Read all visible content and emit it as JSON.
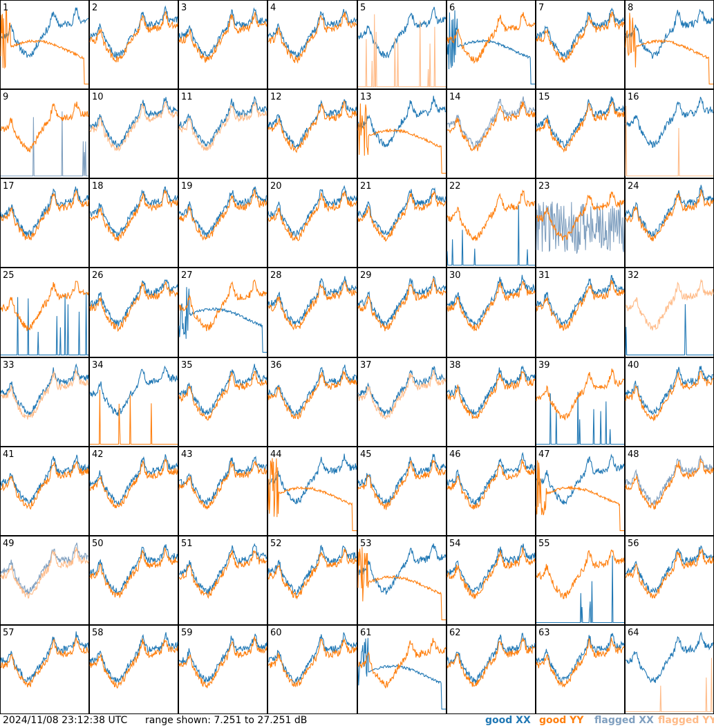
{
  "footer": {
    "timestamp": "2024/11/08 23:12:38 UTC",
    "range_text": "range shown: 7.251 to 27.251 dB",
    "legend": [
      "good XX",
      "good YY",
      "flagged XX",
      "flagged YY"
    ]
  },
  "colors": {
    "good_xx": "#1f77b4",
    "good_yy": "#ff7f0e",
    "flagged_xx": "#7f9fbf",
    "flagged_yy": "#ffbb88"
  },
  "chart_data": {
    "type": "line",
    "layout": "8x8 small multiples",
    "ylim": [
      7.251,
      27.251
    ],
    "y_unit": "dB",
    "panels": [
      {
        "id": "1",
        "xx": "good",
        "yy": "good",
        "yy_shape": "drop"
      },
      {
        "id": "2",
        "xx": "good",
        "yy": "good"
      },
      {
        "id": "3",
        "xx": "good",
        "yy": "good"
      },
      {
        "id": "4",
        "xx": "good",
        "yy": "good"
      },
      {
        "id": "5",
        "xx": "good",
        "yy": "flagged",
        "yy_shape": "spikes"
      },
      {
        "id": "6",
        "xx": "good",
        "yy": "good",
        "xx_shape": "drop"
      },
      {
        "id": "7",
        "xx": "good",
        "yy": "good"
      },
      {
        "id": "8",
        "xx": "good",
        "yy": "good",
        "yy_shape": "drop"
      },
      {
        "id": "9",
        "xx": "flagged",
        "yy": "good",
        "xx_shape": "spikes"
      },
      {
        "id": "10",
        "xx": "good",
        "yy": "flagged"
      },
      {
        "id": "11",
        "xx": "good",
        "yy": "flagged"
      },
      {
        "id": "12",
        "xx": "good",
        "yy": "good"
      },
      {
        "id": "13",
        "xx": "good",
        "yy": "good",
        "yy_shape": "drop"
      },
      {
        "id": "14",
        "xx": "flagged",
        "yy": "good"
      },
      {
        "id": "15",
        "xx": "good",
        "yy": "good"
      },
      {
        "id": "16",
        "xx": "good",
        "yy": "flagged",
        "yy_shape": "spikes"
      },
      {
        "id": "17",
        "xx": "good",
        "yy": "good"
      },
      {
        "id": "18",
        "xx": "good",
        "yy": "good"
      },
      {
        "id": "19",
        "xx": "good",
        "yy": "good"
      },
      {
        "id": "20",
        "xx": "good",
        "yy": "good"
      },
      {
        "id": "21",
        "xx": "good",
        "yy": "good"
      },
      {
        "id": "22",
        "xx": "good",
        "yy": "good",
        "xx_shape": "spikes"
      },
      {
        "id": "23",
        "xx": "flagged",
        "yy": "good",
        "xx_shape": "noisy"
      },
      {
        "id": "24",
        "xx": "good",
        "yy": "good"
      },
      {
        "id": "25",
        "xx": "good",
        "yy": "good",
        "xx_shape": "spikes"
      },
      {
        "id": "26",
        "xx": "good",
        "yy": "good"
      },
      {
        "id": "27",
        "xx": "good",
        "yy": "good",
        "xx_shape": "drop"
      },
      {
        "id": "28",
        "xx": "good",
        "yy": "good"
      },
      {
        "id": "29",
        "xx": "good",
        "yy": "good"
      },
      {
        "id": "30",
        "xx": "good",
        "yy": "good"
      },
      {
        "id": "31",
        "xx": "good",
        "yy": "good"
      },
      {
        "id": "32",
        "xx": "good",
        "yy": "flagged",
        "xx_shape": "spikes"
      },
      {
        "id": "33",
        "xx": "good",
        "yy": "flagged"
      },
      {
        "id": "34",
        "xx": "good",
        "yy": "good",
        "yy_shape": "spikes"
      },
      {
        "id": "35",
        "xx": "good",
        "yy": "good"
      },
      {
        "id": "36",
        "xx": "good",
        "yy": "good"
      },
      {
        "id": "37",
        "xx": "good",
        "yy": "flagged"
      },
      {
        "id": "38",
        "xx": "good",
        "yy": "good"
      },
      {
        "id": "39",
        "xx": "good",
        "yy": "good",
        "xx_shape": "spikes"
      },
      {
        "id": "40",
        "xx": "good",
        "yy": "good"
      },
      {
        "id": "41",
        "xx": "good",
        "yy": "good"
      },
      {
        "id": "42",
        "xx": "good",
        "yy": "good"
      },
      {
        "id": "43",
        "xx": "good",
        "yy": "good"
      },
      {
        "id": "44",
        "xx": "good",
        "yy": "good",
        "yy_shape": "drop"
      },
      {
        "id": "45",
        "xx": "good",
        "yy": "good"
      },
      {
        "id": "46",
        "xx": "good",
        "yy": "good"
      },
      {
        "id": "47",
        "xx": "good",
        "yy": "good",
        "yy_shape": "drop"
      },
      {
        "id": "48",
        "xx": "flagged",
        "yy": "good"
      },
      {
        "id": "49",
        "xx": "flagged",
        "yy": "flagged"
      },
      {
        "id": "50",
        "xx": "good",
        "yy": "good"
      },
      {
        "id": "51",
        "xx": "good",
        "yy": "good"
      },
      {
        "id": "52",
        "xx": "good",
        "yy": "good"
      },
      {
        "id": "53",
        "xx": "good",
        "yy": "good",
        "yy_shape": "drop"
      },
      {
        "id": "54",
        "xx": "good",
        "yy": "good"
      },
      {
        "id": "55",
        "xx": "good",
        "yy": "good",
        "xx_shape": "spikes"
      },
      {
        "id": "56",
        "xx": "good",
        "yy": "good"
      },
      {
        "id": "57",
        "xx": "good",
        "yy": "good"
      },
      {
        "id": "58",
        "xx": "good",
        "yy": "good"
      },
      {
        "id": "59",
        "xx": "good",
        "yy": "good"
      },
      {
        "id": "60",
        "xx": "good",
        "yy": "good"
      },
      {
        "id": "61",
        "xx": "good",
        "yy": "good",
        "xx_shape": "drop"
      },
      {
        "id": "62",
        "xx": "good",
        "yy": "good"
      },
      {
        "id": "63",
        "xx": "good",
        "yy": "good"
      },
      {
        "id": "64",
        "xx": "good",
        "yy": "flagged",
        "yy_shape": "spikes"
      }
    ]
  }
}
